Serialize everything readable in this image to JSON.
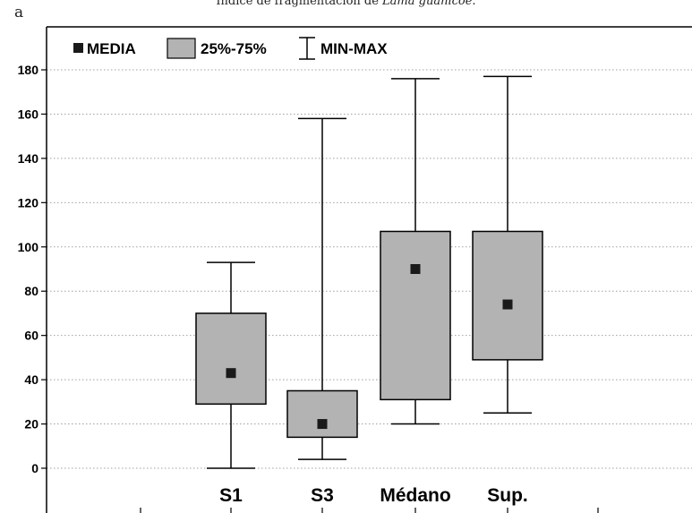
{
  "caption": {
    "prefix": "Índice de fragmentación de ",
    "species": "Lama guanicoe",
    "suffix": "."
  },
  "panel_label": "a",
  "chart_data": {
    "type": "box",
    "title": "",
    "xlabel": "",
    "ylabel": "",
    "ylim": [
      -12,
      190
    ],
    "yticks": [
      0,
      20,
      40,
      60,
      80,
      100,
      120,
      140,
      160,
      180
    ],
    "grid": "horizontal dotted",
    "legend": {
      "placement": "top-left",
      "entries": [
        {
          "label": "MEDIA",
          "marker": "filled-square"
        },
        {
          "label": "25%-75%",
          "marker": "box"
        },
        {
          "label": "MIN-MAX",
          "marker": "whisker"
        }
      ]
    },
    "categories": [
      "S1",
      "S3",
      "Médano",
      "Sup."
    ],
    "boxes": [
      {
        "category": "S1",
        "min": 0,
        "q1": 29,
        "median": 43,
        "q3": 70,
        "max": 93
      },
      {
        "category": "S3",
        "min": 4,
        "q1": 14,
        "median": 20,
        "q3": 35,
        "max": 158
      },
      {
        "category": "Médano",
        "min": 20,
        "q1": 31,
        "median": 90,
        "q3": 107,
        "max": 176
      },
      {
        "category": "Sup.",
        "min": 25,
        "q1": 49,
        "median": 74,
        "q3": 107,
        "max": 177
      }
    ],
    "colors": {
      "box_fill": "#b3b3b3",
      "stroke": "#000000",
      "grid": "#a0a0a0",
      "mean_marker": "#1a1a1a"
    }
  }
}
